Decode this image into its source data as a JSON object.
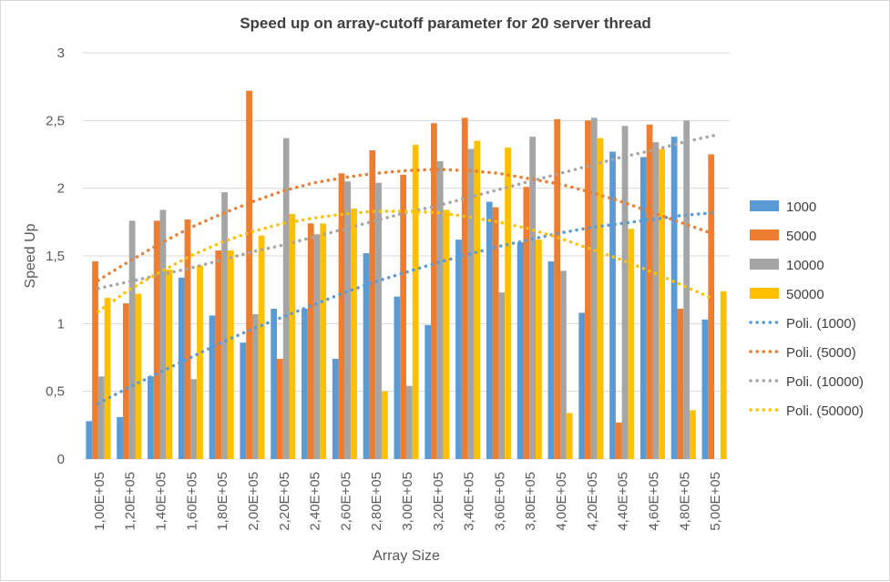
{
  "chart_data": {
    "type": "bar",
    "title": "Speed up on array-cutoff parameter for 20 server thread",
    "xlabel": "Array Size",
    "ylabel": "Speed Up",
    "ylim": [
      0,
      3
    ],
    "yticks": [
      0,
      0.5,
      1,
      1.5,
      2,
      2.5,
      3
    ],
    "ytick_labels": [
      "0",
      "0,5",
      "1",
      "1,5",
      "2",
      "2,5",
      "3"
    ],
    "categories": [
      "1,00E+05",
      "1,20E+05",
      "1,40E+05",
      "1,60E+05",
      "1,80E+05",
      "2,00E+05",
      "2,20E+05",
      "2,40E+05",
      "2,60E+05",
      "2,80E+05",
      "3,00E+05",
      "3,20E+05",
      "3,40E+05",
      "3,60E+05",
      "3,80E+05",
      "4,00E+05",
      "4,20E+05",
      "4,40E+05",
      "4,60E+05",
      "4,80E+05",
      "5,00E+05"
    ],
    "grid": true,
    "legend_position": "right",
    "series": [
      {
        "name": "1000",
        "color": "#5b9bd5",
        "values": [
          0.28,
          0.31,
          0.61,
          1.34,
          1.06,
          0.86,
          1.11,
          1.11,
          0.74,
          1.52,
          1.2,
          0.99,
          1.62,
          1.9,
          1.6,
          1.46,
          1.08,
          2.27,
          2.23,
          2.38,
          1.03
        ]
      },
      {
        "name": "5000",
        "color": "#ed7d31",
        "values": [
          1.46,
          1.15,
          1.76,
          1.77,
          1.54,
          2.72,
          0.74,
          1.74,
          2.11,
          2.28,
          2.1,
          2.48,
          2.52,
          1.86,
          2.01,
          2.51,
          2.5,
          0.27,
          2.47,
          1.11,
          2.25
        ]
      },
      {
        "name": "10000",
        "color": "#a5a5a5",
        "values": [
          0.61,
          1.76,
          1.84,
          0.59,
          1.97,
          1.07,
          2.37,
          1.66,
          2.05,
          2.04,
          0.54,
          2.2,
          2.29,
          1.23,
          2.38,
          1.39,
          2.52,
          2.46,
          2.34,
          2.5,
          0
        ]
      },
      {
        "name": "50000",
        "color": "#ffc000",
        "values": [
          1.19,
          1.22,
          1.4,
          1.43,
          1.54,
          1.65,
          1.81,
          1.74,
          1.85,
          0.5,
          2.32,
          1.84,
          2.35,
          2.3,
          1.62,
          0.34,
          2.37,
          1.7,
          2.29,
          0.36,
          1.24
        ]
      }
    ],
    "trendlines": [
      {
        "name": "Poli. (1000)",
        "color": "#5b9bd5",
        "values": [
          0.41,
          0.53,
          0.64,
          0.75,
          0.86,
          0.96,
          1.05,
          1.14,
          1.23,
          1.31,
          1.38,
          1.45,
          1.51,
          1.57,
          1.62,
          1.67,
          1.71,
          1.74,
          1.77,
          1.8,
          1.82
        ]
      },
      {
        "name": "Poli. (5000)",
        "color": "#ed7d31",
        "values": [
          1.32,
          1.46,
          1.59,
          1.71,
          1.81,
          1.9,
          1.98,
          2.04,
          2.08,
          2.11,
          2.13,
          2.14,
          2.13,
          2.11,
          2.07,
          2.03,
          1.97,
          1.9,
          1.82,
          1.74,
          1.66
        ]
      },
      {
        "name": "Poli. (10000)",
        "color": "#a5a5a5",
        "values": [
          1.26,
          1.31,
          1.36,
          1.41,
          1.47,
          1.53,
          1.58,
          1.64,
          1.7,
          1.76,
          1.82,
          1.87,
          1.93,
          1.99,
          2.05,
          2.11,
          2.17,
          2.23,
          2.28,
          2.34,
          2.39
        ]
      },
      {
        "name": "Poli. (50000)",
        "color": "#ffc000",
        "values": [
          1.09,
          1.25,
          1.38,
          1.5,
          1.6,
          1.68,
          1.74,
          1.78,
          1.81,
          1.83,
          1.83,
          1.82,
          1.79,
          1.75,
          1.7,
          1.63,
          1.55,
          1.47,
          1.38,
          1.28,
          1.18
        ]
      }
    ]
  }
}
